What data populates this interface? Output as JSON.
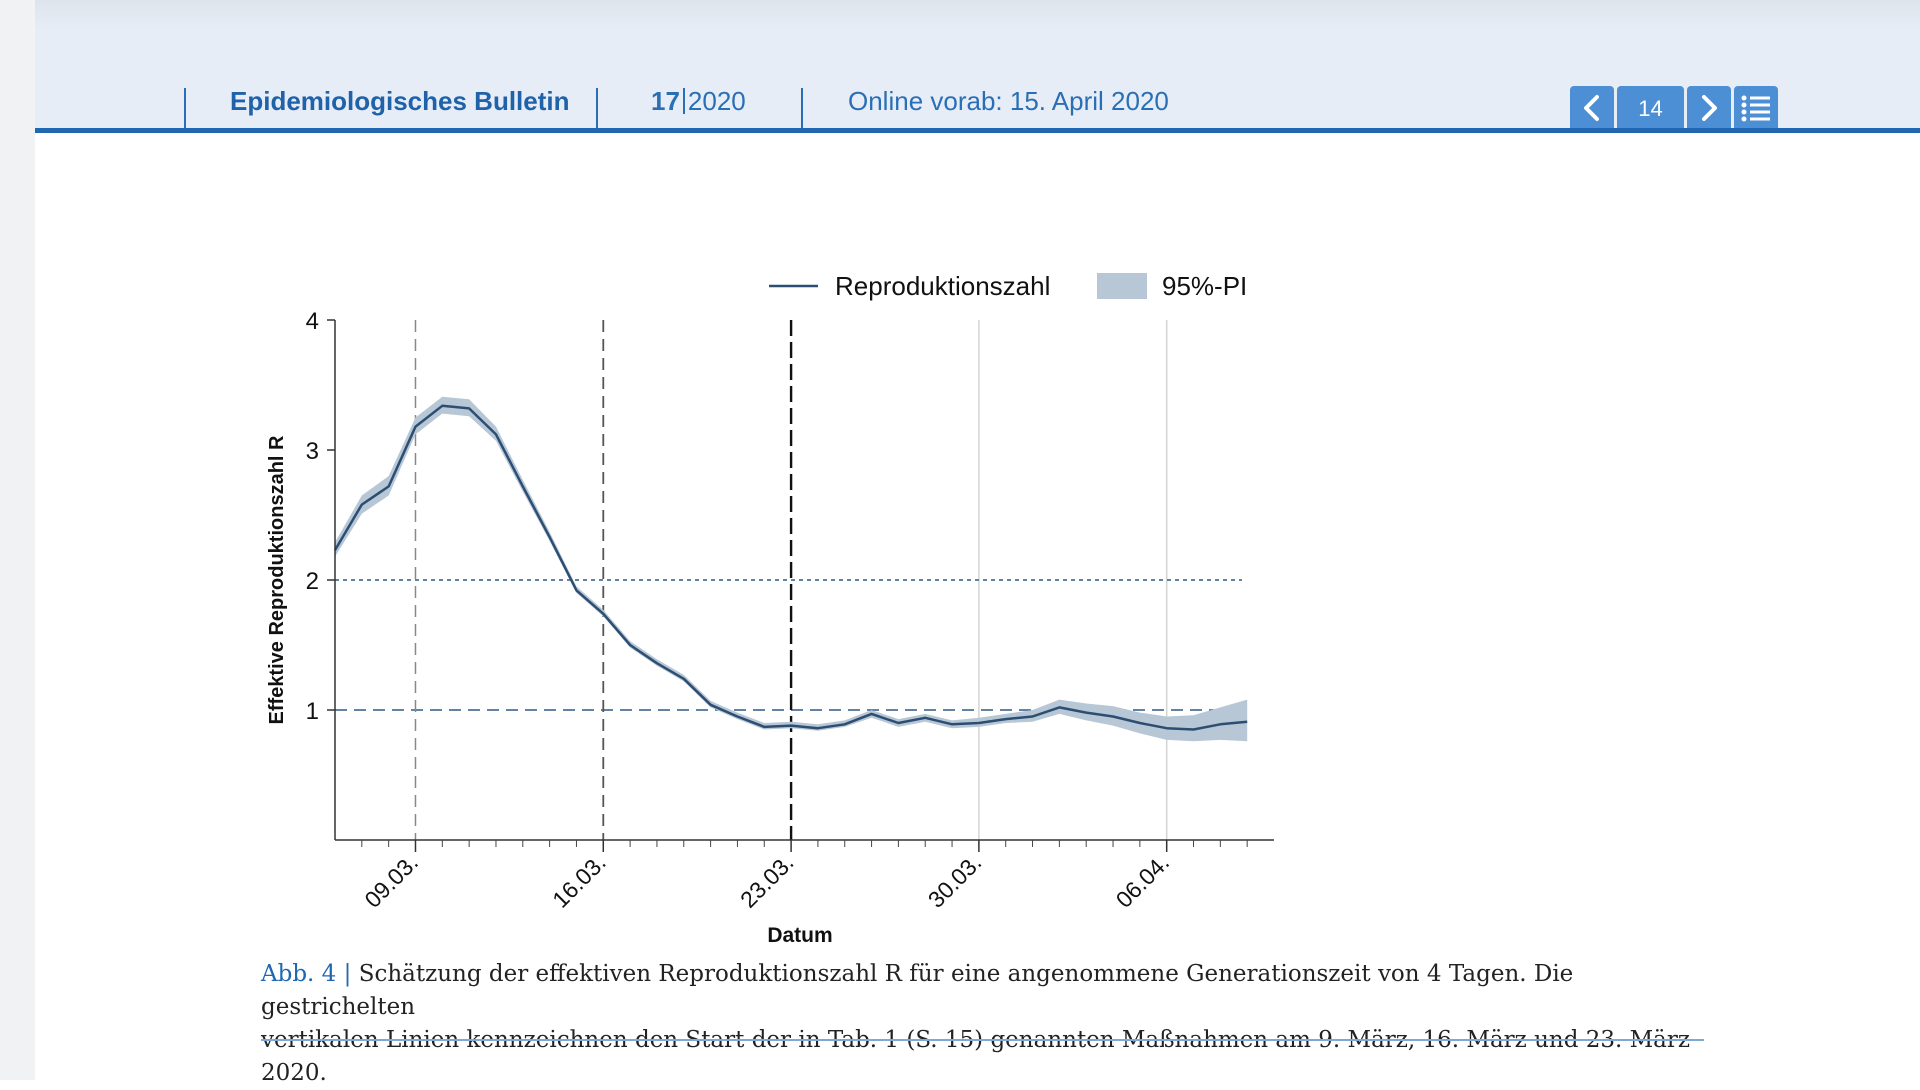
{
  "header": {
    "journal_title": "Epidemiologisches Bulletin",
    "issue_number": "17",
    "issue_year": "2020",
    "online_text": "Online vorab: 15. April 2020",
    "colors": {
      "background": "#e6edf6",
      "accent": "#1f67b0",
      "button": "#4d8fd4"
    }
  },
  "nav": {
    "page_number": "14",
    "icons": {
      "prev": "chevron-left-icon",
      "next": "chevron-right-icon",
      "toc": "list-icon"
    }
  },
  "caption": {
    "label": "Abb. 4 |",
    "line1": "Schätzung der effektiven Reproduktionszahl R für eine angenommene Generationszeit von 4 Tagen. Die gestrichelten",
    "line2": "vertikalen Linien kennzeichnen den Start der in Tab. 1 (S. 15) genannten Maßnahmen am 9. März, 16. März und 23. März 2020."
  },
  "chart_data": {
    "type": "line",
    "x_unit": "date",
    "x": [
      "2020-03-06",
      "2020-03-07",
      "2020-03-08",
      "2020-03-09",
      "2020-03-10",
      "2020-03-11",
      "2020-03-12",
      "2020-03-13",
      "2020-03-14",
      "2020-03-15",
      "2020-03-16",
      "2020-03-17",
      "2020-03-18",
      "2020-03-19",
      "2020-03-20",
      "2020-03-21",
      "2020-03-22",
      "2020-03-23",
      "2020-03-24",
      "2020-03-25",
      "2020-03-26",
      "2020-03-27",
      "2020-03-28",
      "2020-03-29",
      "2020-03-30",
      "2020-03-31",
      "2020-04-01",
      "2020-04-02",
      "2020-04-03",
      "2020-04-04",
      "2020-04-05",
      "2020-04-06",
      "2020-04-07",
      "2020-04-08",
      "2020-04-09"
    ],
    "series": [
      {
        "name": "Reproduktionszahl",
        "color": "#2c4e72",
        "values": [
          2.23,
          2.58,
          2.72,
          3.18,
          3.34,
          3.32,
          3.12,
          2.72,
          2.33,
          1.92,
          1.74,
          1.5,
          1.36,
          1.24,
          1.04,
          0.95,
          0.87,
          0.88,
          0.86,
          0.89,
          0.97,
          0.9,
          0.94,
          0.89,
          0.9,
          0.93,
          0.95,
          1.02,
          0.98,
          0.95,
          0.9,
          0.86,
          0.85,
          0.89,
          0.91
        ]
      }
    ],
    "interval": {
      "name": "95%-PI",
      "color": "#b8c7d6",
      "lower": [
        2.18,
        2.51,
        2.65,
        3.12,
        3.28,
        3.26,
        3.07,
        2.68,
        2.3,
        1.9,
        1.72,
        1.48,
        1.34,
        1.22,
        1.02,
        0.93,
        0.85,
        0.86,
        0.84,
        0.87,
        0.94,
        0.87,
        0.91,
        0.86,
        0.87,
        0.9,
        0.91,
        0.97,
        0.92,
        0.88,
        0.82,
        0.77,
        0.76,
        0.77,
        0.76
      ],
      "upper": [
        2.29,
        2.65,
        2.8,
        3.25,
        3.41,
        3.39,
        3.18,
        2.77,
        2.37,
        1.95,
        1.77,
        1.53,
        1.39,
        1.27,
        1.07,
        0.98,
        0.9,
        0.91,
        0.89,
        0.92,
        1.0,
        0.93,
        0.97,
        0.92,
        0.94,
        0.97,
        1.0,
        1.08,
        1.05,
        1.03,
        0.98,
        0.95,
        0.96,
        1.02,
        1.08
      ]
    },
    "intervention_dates": [
      "2020-03-09",
      "2020-03-16",
      "2020-03-23"
    ],
    "reference_lines": [
      {
        "y": 2,
        "style": "dotted"
      },
      {
        "y": 1,
        "style": "dashed"
      }
    ],
    "light_gridlines_x": [
      "2020-03-30",
      "2020-04-06"
    ],
    "legend": {
      "line_label": "Reproduktionszahl",
      "band_label": "95%-PI",
      "position": "top"
    },
    "xlabel": "Datum",
    "ylabel": "Effektive Reproduktionszahl R",
    "xlim": [
      "2020-03-06",
      "2020-04-10"
    ],
    "ylim": [
      0,
      4
    ],
    "y_ticks": [
      1,
      2,
      3,
      4
    ],
    "x_ticks": [
      {
        "date": "2020-03-09",
        "label": "09.03."
      },
      {
        "date": "2020-03-16",
        "label": "16.03."
      },
      {
        "date": "2020-03-23",
        "label": "23.03."
      },
      {
        "date": "2020-03-30",
        "label": "30.03."
      },
      {
        "date": "2020-04-06",
        "label": "06.04."
      }
    ],
    "minor_tick_interval_days": 1,
    "grid": false
  }
}
